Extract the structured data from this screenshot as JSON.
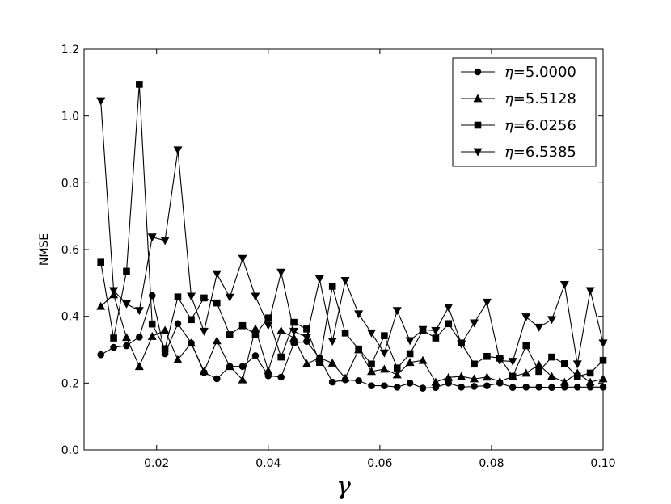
{
  "chart_data": {
    "type": "line",
    "xlabel": "γ",
    "ylabel": "NMSE",
    "xlim": [
      0.007,
      0.1
    ],
    "ylim": [
      0.0,
      1.2
    ],
    "xticks": [
      0.02,
      0.04,
      0.06,
      0.08,
      0.1
    ],
    "xtick_labels": [
      "0.02",
      "0.04",
      "0.06",
      "0.08",
      "0.10"
    ],
    "yticks": [
      0.0,
      0.2,
      0.4,
      0.6,
      0.8,
      1.0,
      1.2
    ],
    "ytick_labels": [
      "0.0",
      "0.2",
      "0.4",
      "0.6",
      "0.8",
      "1.0",
      "1.2"
    ],
    "grid": false,
    "legend_position": "top-right",
    "x": [
      0.01,
      0.0123,
      0.0146,
      0.0169,
      0.0192,
      0.0215,
      0.0238,
      0.0262,
      0.0285,
      0.0308,
      0.0331,
      0.0354,
      0.0377,
      0.04,
      0.0423,
      0.0446,
      0.0469,
      0.0492,
      0.0515,
      0.0538,
      0.0562,
      0.0585,
      0.0608,
      0.0631,
      0.0654,
      0.0677,
      0.07,
      0.0723,
      0.0746,
      0.0769,
      0.0792,
      0.0815,
      0.0838,
      0.0862,
      0.0885,
      0.0908,
      0.0931,
      0.0954,
      0.0977,
      0.1
    ],
    "series": [
      {
        "name": "η=5.0000",
        "legend_prefix": "η",
        "legend_value": "=5.0000",
        "marker": "circle",
        "values": [
          0.285,
          0.307,
          0.312,
          0.338,
          0.462,
          0.288,
          0.378,
          0.32,
          0.232,
          0.213,
          0.25,
          0.25,
          0.282,
          0.222,
          0.218,
          0.32,
          0.325,
          0.275,
          0.203,
          0.21,
          0.207,
          0.192,
          0.192,
          0.188,
          0.2,
          0.185,
          0.187,
          0.2,
          0.188,
          0.19,
          0.192,
          0.2,
          0.187,
          0.188,
          0.188,
          0.187,
          0.188,
          0.188,
          0.188,
          0.188
        ]
      },
      {
        "name": "η=5.5128",
        "legend_prefix": "η",
        "legend_value": "=5.5128",
        "marker": "triangle-up",
        "values": [
          0.43,
          0.465,
          0.337,
          0.25,
          0.34,
          0.358,
          0.27,
          0.32,
          0.235,
          0.327,
          0.25,
          0.21,
          0.363,
          0.237,
          0.357,
          0.335,
          0.258,
          0.275,
          0.26,
          0.215,
          0.3,
          0.235,
          0.242,
          0.225,
          0.262,
          0.268,
          0.203,
          0.217,
          0.22,
          0.213,
          0.218,
          0.205,
          0.22,
          0.23,
          0.255,
          0.22,
          0.203,
          0.23,
          0.203,
          0.213
        ]
      },
      {
        "name": "η=6.0256",
        "legend_prefix": "η",
        "legend_value": "=6.0256",
        "marker": "square",
        "values": [
          0.562,
          0.335,
          0.535,
          1.095,
          0.377,
          0.303,
          0.458,
          0.39,
          0.455,
          0.44,
          0.345,
          0.372,
          0.345,
          0.395,
          0.278,
          0.382,
          0.362,
          0.262,
          0.49,
          0.35,
          0.302,
          0.257,
          0.342,
          0.245,
          0.288,
          0.358,
          0.335,
          0.378,
          0.32,
          0.257,
          0.28,
          0.275,
          0.22,
          0.312,
          0.235,
          0.278,
          0.258,
          0.22,
          0.23,
          0.268
        ]
      },
      {
        "name": "η=6.5385",
        "legend_prefix": "η",
        "legend_value": "=6.5385",
        "marker": "triangle-down",
        "values": [
          1.045,
          0.477,
          0.437,
          0.417,
          0.637,
          0.627,
          0.898,
          0.46,
          0.355,
          0.527,
          0.457,
          0.573,
          0.46,
          0.373,
          0.532,
          0.355,
          0.337,
          0.512,
          0.325,
          0.507,
          0.407,
          0.35,
          0.29,
          0.417,
          0.327,
          0.36,
          0.357,
          0.427,
          0.317,
          0.38,
          0.442,
          0.267,
          0.265,
          0.398,
          0.367,
          0.39,
          0.495,
          0.257,
          0.477,
          0.32
        ]
      }
    ]
  }
}
